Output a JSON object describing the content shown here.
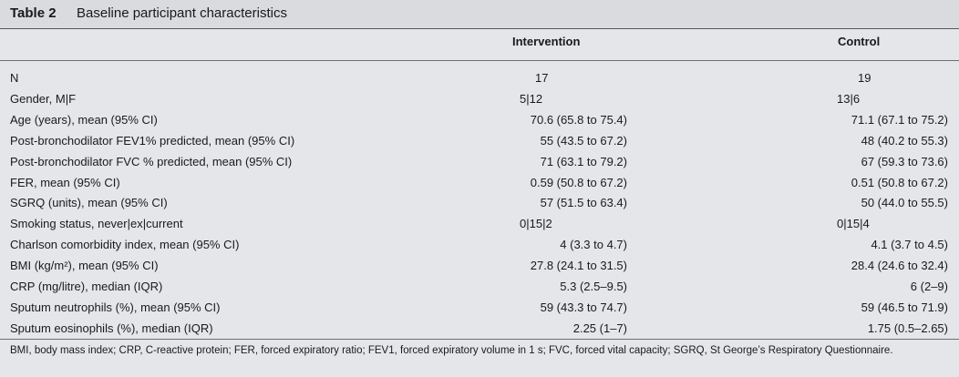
{
  "title": {
    "number": "Table 2",
    "text": "Baseline participant characteristics"
  },
  "columns": {
    "intervention": "Intervention",
    "control": "Control"
  },
  "rows": [
    {
      "label": "N",
      "intervention": "17",
      "control": "19",
      "align": "center"
    },
    {
      "label": "Gender, M|F",
      "intervention": "5|12",
      "control": "13|6",
      "align": "left"
    },
    {
      "label": "Age (years), mean (95% CI)",
      "intervention": "70.6 (65.8 to 75.4)",
      "control": "71.1 (67.1 to 75.2)",
      "align": "right"
    },
    {
      "label": "Post-bronchodilator FEV1% predicted, mean (95% CI)",
      "intervention": "55 (43.5 to 67.2)",
      "control": "48 (40.2 to 55.3)",
      "align": "right"
    },
    {
      "label": "Post-bronchodilator FVC % predicted, mean (95% CI)",
      "intervention": "71 (63.1 to 79.2)",
      "control": "67 (59.3 to 73.6)",
      "align": "right"
    },
    {
      "label": "FER, mean (95% CI)",
      "intervention": "0.59 (50.8 to 67.2)",
      "control": "0.51 (50.8 to 67.2)",
      "align": "right"
    },
    {
      "label": "SGRQ (units), mean (95% CI)",
      "intervention": "57 (51.5 to 63.4)",
      "control": "50 (44.0 to 55.5)",
      "align": "right"
    },
    {
      "label": "Smoking status, never|ex|current",
      "intervention": "0|15|2",
      "control": "0|15|4",
      "align": "left"
    },
    {
      "label": "Charlson comorbidity index, mean (95% CI)",
      "intervention": "4 (3.3 to 4.7)",
      "control": "4.1 (3.7 to 4.5)",
      "align": "right"
    },
    {
      "label": "BMI (kg/m²), mean (95% CI)",
      "intervention": "27.8 (24.1 to 31.5)",
      "control": "28.4 (24.6 to 32.4)",
      "align": "right"
    },
    {
      "label": "CRP (mg/litre), median (IQR)",
      "intervention": "5.3 (2.5–9.5)",
      "control": "6 (2–9)",
      "align": "right"
    },
    {
      "label": "Sputum neutrophils (%), mean (95% CI)",
      "intervention": "59 (43.3 to 74.7)",
      "control": "59 (46.5 to 71.9)",
      "align": "right"
    },
    {
      "label": "Sputum eosinophils (%), median (IQR)",
      "intervention": "2.25 (1–7)",
      "control": "1.75 (0.5–2.65)",
      "align": "right"
    }
  ],
  "footnote": "BMI, body mass index; CRP, C-reactive protein; FER, forced expiratory ratio; FEV1, forced expiratory volume in 1 s; FVC, forced vital capacity; SGRQ, St George’s Respiratory Questionnaire."
}
